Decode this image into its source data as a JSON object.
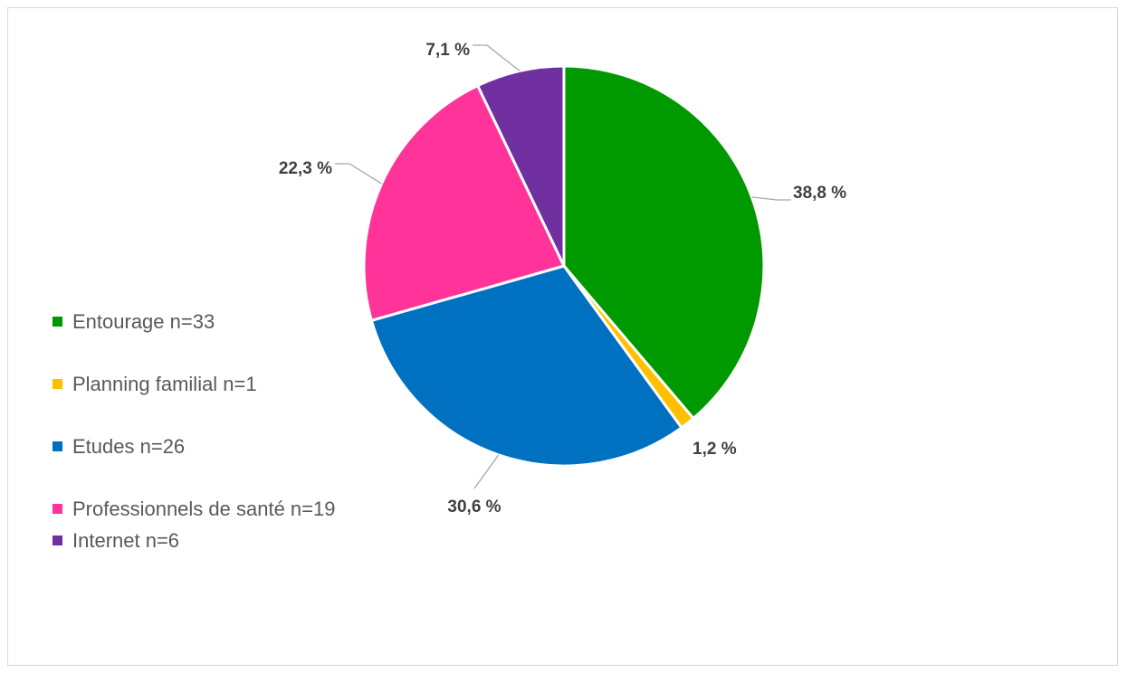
{
  "chart_data": {
    "type": "pie",
    "title": "",
    "slices": [
      {
        "name": "Entourage n=33",
        "percent": 38.8,
        "label": "38,8 %",
        "color": "#009900"
      },
      {
        "name": "Planning familial n=1",
        "percent": 1.2,
        "label": "1,2 %",
        "color": "#ffc000"
      },
      {
        "name": "Etudes n=26",
        "percent": 30.6,
        "label": "30,6 %",
        "color": "#0070c0"
      },
      {
        "name": "Professionnels de santé n=19",
        "percent": 22.3,
        "label": "22,3 %",
        "color": "#ff3399"
      },
      {
        "name": "Internet n=6",
        "percent": 7.1,
        "label": "7,1 %",
        "color": "#7030a0"
      }
    ],
    "legend_position": "left",
    "start_angle": "12 o'clock",
    "direction": "clockwise",
    "slice_border_color": "#ffffff"
  }
}
